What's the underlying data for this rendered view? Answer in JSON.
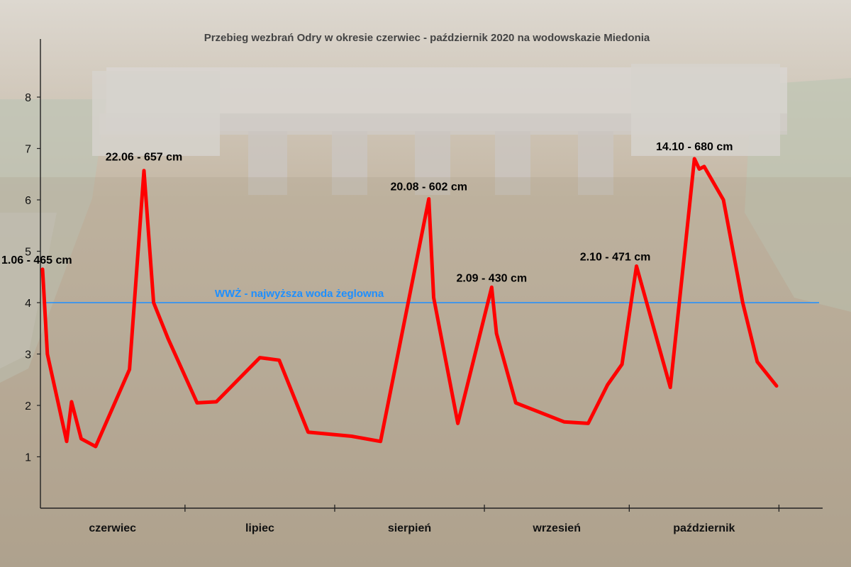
{
  "chart_data": {
    "type": "line",
    "title": "Przebieg wezbrań Odry w okresie czerwiec - październik 2020  na wodowskazie Miedonia",
    "xlabel": "",
    "ylabel": "",
    "x_domain": [
      "2020-06-01",
      "2020-10-31"
    ],
    "y_axis": {
      "ylim": [
        0,
        9
      ],
      "ticks": [
        1,
        2,
        3,
        4,
        5,
        6,
        7,
        8
      ]
    },
    "months": [
      {
        "label": "czerwiec",
        "start": "2020-06-01",
        "end": "2020-06-30"
      },
      {
        "label": "lipiec",
        "start": "2020-07-01",
        "end": "2020-07-31"
      },
      {
        "label": "sierpień",
        "start": "2020-08-01",
        "end": "2020-08-31"
      },
      {
        "label": "wrzesień",
        "start": "2020-09-01",
        "end": "2020-09-30"
      },
      {
        "label": "październik",
        "start": "2020-10-01",
        "end": "2020-10-31"
      }
    ],
    "series": [
      {
        "color": "#ff0000",
        "points": [
          {
            "x": "2020-06-01",
            "y": 4.65
          },
          {
            "x": "2020-06-02",
            "y": 3.0
          },
          {
            "x": "2020-06-06",
            "y": 1.3
          },
          {
            "x": "2020-06-07",
            "y": 2.07
          },
          {
            "x": "2020-06-09",
            "y": 1.35
          },
          {
            "x": "2020-06-12",
            "y": 1.2
          },
          {
            "x": "2020-06-19",
            "y": 2.7
          },
          {
            "x": "2020-06-22",
            "y": 6.57
          },
          {
            "x": "2020-06-24",
            "y": 4.0
          },
          {
            "x": "2020-06-27",
            "y": 3.3
          },
          {
            "x": "2020-07-03",
            "y": 2.05
          },
          {
            "x": "2020-07-07",
            "y": 2.07
          },
          {
            "x": "2020-07-16",
            "y": 2.93
          },
          {
            "x": "2020-07-20",
            "y": 2.88
          },
          {
            "x": "2020-07-26",
            "y": 1.48
          },
          {
            "x": "2020-08-04",
            "y": 1.4
          },
          {
            "x": "2020-08-10",
            "y": 1.3
          },
          {
            "x": "2020-08-20",
            "y": 6.02
          },
          {
            "x": "2020-08-21",
            "y": 4.1
          },
          {
            "x": "2020-08-26",
            "y": 1.65
          },
          {
            "x": "2020-09-02",
            "y": 4.3
          },
          {
            "x": "2020-09-03",
            "y": 3.4
          },
          {
            "x": "2020-09-07",
            "y": 2.05
          },
          {
            "x": "2020-09-17",
            "y": 1.68
          },
          {
            "x": "2020-09-22",
            "y": 1.65
          },
          {
            "x": "2020-09-26",
            "y": 2.4
          },
          {
            "x": "2020-09-29",
            "y": 2.8
          },
          {
            "x": "2020-10-02",
            "y": 4.71
          },
          {
            "x": "2020-10-09",
            "y": 2.35
          },
          {
            "x": "2020-10-12",
            "y": 5.0
          },
          {
            "x": "2020-10-14",
            "y": 6.8
          },
          {
            "x": "2020-10-15",
            "y": 6.6
          },
          {
            "x": "2020-10-16",
            "y": 6.65
          },
          {
            "x": "2020-10-20",
            "y": 6.0
          },
          {
            "x": "2020-10-24",
            "y": 4.0
          },
          {
            "x": "2020-10-27",
            "y": 2.85
          },
          {
            "x": "2020-10-31",
            "y": 2.38
          }
        ]
      }
    ],
    "reference_line": {
      "label": "WWŻ - najwyższa woda żeglowna",
      "y": 4.0,
      "color": "#1e8fff"
    },
    "annotations": [
      {
        "text": "1.06 - 465 cm",
        "x": "2020-06-01",
        "y": 4.65
      },
      {
        "text": "22.06 - 657 cm",
        "x": "2020-06-22",
        "y": 6.57
      },
      {
        "text": "20.08 - 602 cm",
        "x": "2020-08-20",
        "y": 6.02
      },
      {
        "text": "2.09 - 430 cm",
        "x": "2020-09-02",
        "y": 4.3
      },
      {
        "text": "2.10 - 471 cm",
        "x": "2020-10-02",
        "y": 4.71
      },
      {
        "text": "14.10 - 680 cm",
        "x": "2020-10-14",
        "y": 6.8
      }
    ],
    "grid": false,
    "background": "aerial photograph of a weir on the river (faded)"
  }
}
